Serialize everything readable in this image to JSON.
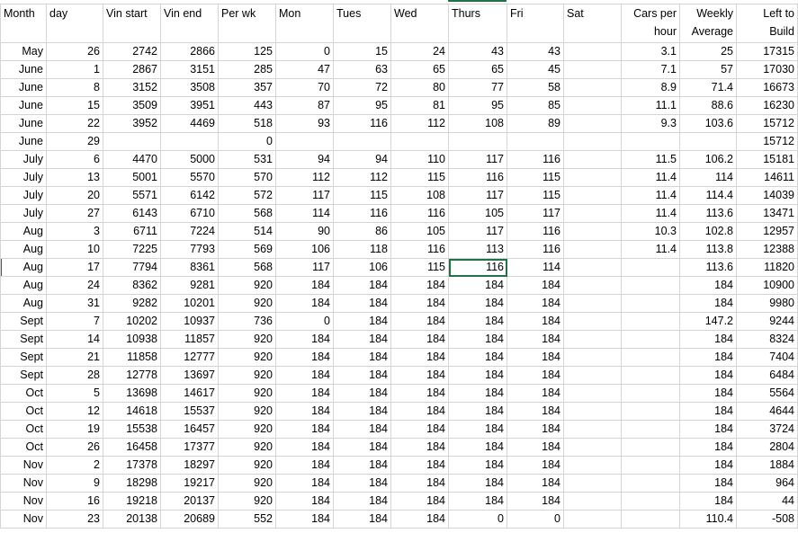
{
  "headers": [
    "Month",
    "day",
    "Vin start",
    "Vin end",
    "Per wk",
    "Mon",
    "Tues",
    "Wed",
    "Thurs",
    "Fri",
    "Sat",
    "Cars per hour",
    "Weekly Average",
    "Left to Build"
  ],
  "selected_cell": {
    "row": "Aug 17",
    "column": "Thurs",
    "value": "116"
  },
  "accent_color": "#217346",
  "rows": [
    [
      "May",
      "26",
      "2742",
      "2866",
      "125",
      "0",
      "15",
      "24",
      "43",
      "43",
      "",
      "3.1",
      "25",
      "17315"
    ],
    [
      "June",
      "1",
      "2867",
      "3151",
      "285",
      "47",
      "63",
      "65",
      "65",
      "45",
      "",
      "7.1",
      "57",
      "17030"
    ],
    [
      "June",
      "8",
      "3152",
      "3508",
      "357",
      "70",
      "72",
      "80",
      "77",
      "58",
      "",
      "8.9",
      "71.4",
      "16673"
    ],
    [
      "June",
      "15",
      "3509",
      "3951",
      "443",
      "87",
      "95",
      "81",
      "95",
      "85",
      "",
      "11.1",
      "88.6",
      "16230"
    ],
    [
      "June",
      "22",
      "3952",
      "4469",
      "518",
      "93",
      "116",
      "112",
      "108",
      "89",
      "",
      "9.3",
      "103.6",
      "15712"
    ],
    [
      "June",
      "29",
      "",
      "",
      "0",
      "",
      "",
      "",
      "",
      "",
      "",
      "",
      "",
      "15712"
    ],
    [
      "July",
      "6",
      "4470",
      "5000",
      "531",
      "94",
      "94",
      "110",
      "117",
      "116",
      "",
      "11.5",
      "106.2",
      "15181"
    ],
    [
      "July",
      "13",
      "5001",
      "5570",
      "570",
      "112",
      "112",
      "115",
      "116",
      "115",
      "",
      "11.4",
      "114",
      "14611"
    ],
    [
      "July",
      "20",
      "5571",
      "6142",
      "572",
      "117",
      "115",
      "108",
      "117",
      "115",
      "",
      "11.4",
      "114.4",
      "14039"
    ],
    [
      "July",
      "27",
      "6143",
      "6710",
      "568",
      "114",
      "116",
      "116",
      "105",
      "117",
      "",
      "11.4",
      "113.6",
      "13471"
    ],
    [
      "Aug",
      "3",
      "6711",
      "7224",
      "514",
      "90",
      "86",
      "105",
      "117",
      "116",
      "",
      "10.3",
      "102.8",
      "12957"
    ],
    [
      "Aug",
      "10",
      "7225",
      "7793",
      "569",
      "106",
      "118",
      "116",
      "113",
      "116",
      "",
      "11.4",
      "113.8",
      "12388"
    ],
    [
      "Aug",
      "17",
      "7794",
      "8361",
      "568",
      "117",
      "106",
      "115",
      "116",
      "114",
      "",
      "",
      "113.6",
      "11820"
    ],
    [
      "Aug",
      "24",
      "8362",
      "9281",
      "920",
      "184",
      "184",
      "184",
      "184",
      "184",
      "",
      "",
      "184",
      "10900"
    ],
    [
      "Aug",
      "31",
      "9282",
      "10201",
      "920",
      "184",
      "184",
      "184",
      "184",
      "184",
      "",
      "",
      "184",
      "9980"
    ],
    [
      "Sept",
      "7",
      "10202",
      "10937",
      "736",
      "0",
      "184",
      "184",
      "184",
      "184",
      "",
      "",
      "147.2",
      "9244"
    ],
    [
      "Sept",
      "14",
      "10938",
      "11857",
      "920",
      "184",
      "184",
      "184",
      "184",
      "184",
      "",
      "",
      "184",
      "8324"
    ],
    [
      "Sept",
      "21",
      "11858",
      "12777",
      "920",
      "184",
      "184",
      "184",
      "184",
      "184",
      "",
      "",
      "184",
      "7404"
    ],
    [
      "Sept",
      "28",
      "12778",
      "13697",
      "920",
      "184",
      "184",
      "184",
      "184",
      "184",
      "",
      "",
      "184",
      "6484"
    ],
    [
      "Oct",
      "5",
      "13698",
      "14617",
      "920",
      "184",
      "184",
      "184",
      "184",
      "184",
      "",
      "",
      "184",
      "5564"
    ],
    [
      "Oct",
      "12",
      "14618",
      "15537",
      "920",
      "184",
      "184",
      "184",
      "184",
      "184",
      "",
      "",
      "184",
      "4644"
    ],
    [
      "Oct",
      "19",
      "15538",
      "16457",
      "920",
      "184",
      "184",
      "184",
      "184",
      "184",
      "",
      "",
      "184",
      "3724"
    ],
    [
      "Oct",
      "26",
      "16458",
      "17377",
      "920",
      "184",
      "184",
      "184",
      "184",
      "184",
      "",
      "",
      "184",
      "2804"
    ],
    [
      "Nov",
      "2",
      "17378",
      "18297",
      "920",
      "184",
      "184",
      "184",
      "184",
      "184",
      "",
      "",
      "184",
      "1884"
    ],
    [
      "Nov",
      "9",
      "18298",
      "19217",
      "920",
      "184",
      "184",
      "184",
      "184",
      "184",
      "",
      "",
      "184",
      "964"
    ],
    [
      "Nov",
      "16",
      "19218",
      "20137",
      "920",
      "184",
      "184",
      "184",
      "184",
      "184",
      "",
      "",
      "184",
      "44"
    ],
    [
      "Nov",
      "23",
      "20138",
      "20689",
      "552",
      "184",
      "184",
      "184",
      "0",
      "0",
      "",
      "",
      "110.4",
      "-508"
    ]
  ]
}
